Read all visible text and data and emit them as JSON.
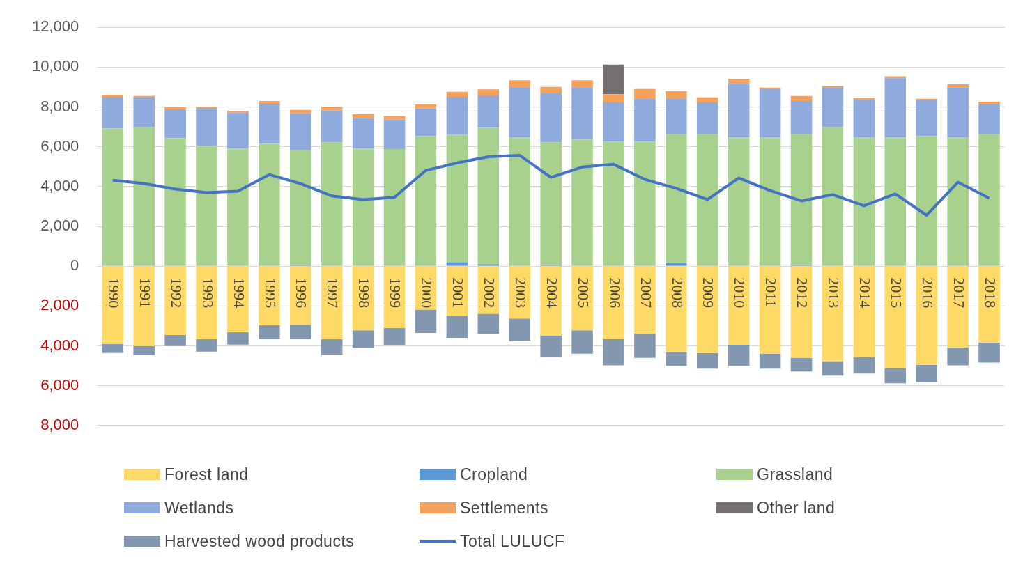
{
  "chart_data": {
    "type": "bar",
    "stacked": true,
    "categories": [
      "1990",
      "1991",
      "1992",
      "1993",
      "1994",
      "1995",
      "1996",
      "1997",
      "1998",
      "1999",
      "2000",
      "2001",
      "2002",
      "2003",
      "2004",
      "2005",
      "2006",
      "2007",
      "2008",
      "2009",
      "2010",
      "2011",
      "2012",
      "2013",
      "2014",
      "2015",
      "2016",
      "2017",
      "2018"
    ],
    "series": [
      {
        "name": "Forest land",
        "color": "#ffd966",
        "values": [
          -3910,
          -4010,
          -3460,
          -3670,
          -3320,
          -2970,
          -2940,
          -3670,
          -3220,
          -3110,
          -2180,
          -2490,
          -2390,
          -2630,
          -3490,
          -3220,
          -3670,
          -3390,
          -4320,
          -4360,
          -3970,
          -4390,
          -4600,
          -4770,
          -4560,
          -5120,
          -4950,
          -4080,
          -3840
        ]
      },
      {
        "name": "Cropland",
        "color": "#5b9bd5",
        "values": [
          0,
          0,
          0,
          0,
          0,
          0,
          50,
          0,
          0,
          0,
          0,
          200,
          100,
          0,
          50,
          0,
          0,
          0,
          150,
          0,
          -80,
          0,
          50,
          0,
          0,
          0,
          0,
          0,
          0
        ]
      },
      {
        "name": "Grassland",
        "color": "#a9d18e",
        "values": [
          6920,
          6990,
          6430,
          6050,
          5910,
          6150,
          5790,
          6220,
          5910,
          5880,
          6540,
          6400,
          6850,
          6470,
          6170,
          6360,
          6260,
          6260,
          6490,
          6640,
          6470,
          6470,
          6590,
          6990,
          6470,
          6470,
          6540,
          6470,
          6640
        ]
      },
      {
        "name": "Wetlands",
        "color": "#8faadc",
        "values": [
          1590,
          1480,
          1450,
          1900,
          1800,
          2010,
          1840,
          1600,
          1520,
          1490,
          1380,
          1910,
          1630,
          2490,
          2460,
          2630,
          1970,
          2140,
          1760,
          1590,
          2690,
          2420,
          1660,
          1970,
          1900,
          2970,
          1790,
          2520,
          1520
        ]
      },
      {
        "name": "Settlements",
        "color": "#f4a15d",
        "values": [
          100,
          80,
          110,
          60,
          100,
          140,
          170,
          200,
          200,
          180,
          200,
          250,
          300,
          380,
          330,
          350,
          410,
          500,
          400,
          250,
          260,
          80,
          250,
          100,
          80,
          100,
          80,
          150,
          100
        ]
      },
      {
        "name": "Other land",
        "color": "#767171",
        "values": [
          0,
          0,
          0,
          0,
          0,
          0,
          0,
          0,
          0,
          0,
          0,
          0,
          0,
          0,
          0,
          0,
          1490,
          0,
          0,
          0,
          0,
          0,
          0,
          0,
          0,
          0,
          0,
          0,
          0
        ]
      },
      {
        "name": "Harvested wood products",
        "color": "#8497b0",
        "values": [
          -450,
          -450,
          -550,
          -620,
          -620,
          -700,
          -730,
          -790,
          -900,
          -870,
          -1170,
          -1110,
          -1000,
          -1140,
          -1070,
          -1170,
          -1310,
          -1210,
          -690,
          -790,
          -960,
          -760,
          -690,
          -730,
          -830,
          -760,
          -890,
          -900,
          -1000
        ]
      },
      {
        "name": "Total LULUCF",
        "type": "line",
        "color": "#4472c4",
        "values": [
          4320,
          4150,
          3870,
          3700,
          3770,
          4600,
          4150,
          3530,
          3350,
          3460,
          4810,
          5190,
          5500,
          5570,
          4460,
          4980,
          5120,
          4360,
          3910,
          3350,
          4430,
          3800,
          3280,
          3600,
          3040,
          3630,
          2560,
          4220,
          3420
        ]
      }
    ],
    "ylim": [
      -8000,
      12000
    ],
    "yticks": [
      {
        "value": -8000,
        "label": "8,000"
      },
      {
        "value": -6000,
        "label": "6,000"
      },
      {
        "value": -4000,
        "label": "4,000"
      },
      {
        "value": -2000,
        "label": "2,000"
      },
      {
        "value": 0,
        "label": "0"
      },
      {
        "value": 2000,
        "label": "2,000"
      },
      {
        "value": 4000,
        "label": "4,000"
      },
      {
        "value": 6000,
        "label": "6,000"
      },
      {
        "value": 8000,
        "label": "8,000"
      },
      {
        "value": 10000,
        "label": "10,000"
      },
      {
        "value": 12000,
        "label": "12,000"
      }
    ],
    "grid": "y",
    "legend": "bottom",
    "marker": "none"
  }
}
